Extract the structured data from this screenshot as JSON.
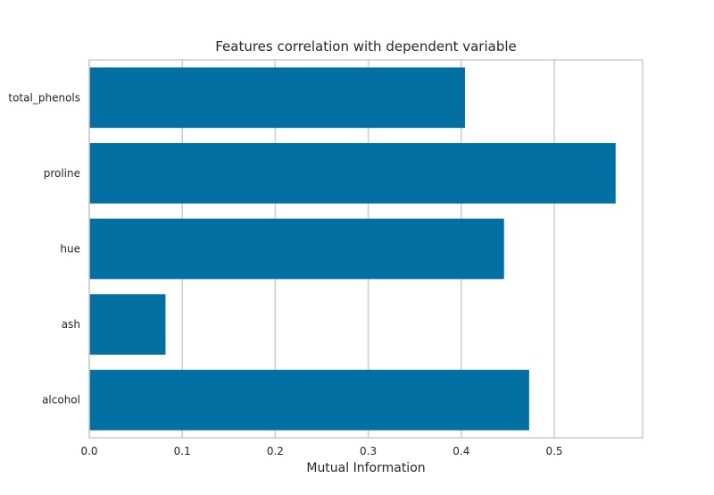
{
  "chart_data": {
    "type": "bar",
    "orientation": "horizontal",
    "title": "Features correlation with dependent variable",
    "xlabel": "Mutual Information",
    "ylabel": "",
    "categories": [
      "alcohol",
      "ash",
      "hue",
      "proline",
      "total_phenols"
    ],
    "values": [
      0.473,
      0.082,
      0.446,
      0.566,
      0.404
    ],
    "xlim": [
      0,
      0.595
    ],
    "xticks": [
      0.0,
      0.1,
      0.2,
      0.3,
      0.4,
      0.5
    ],
    "xtick_labels": [
      "0.0",
      "0.1",
      "0.2",
      "0.3",
      "0.4",
      "0.5"
    ],
    "grid": true,
    "bar_color": "#0270a3",
    "grid_color": "#cccccc",
    "frame_color": "#cccccc"
  }
}
